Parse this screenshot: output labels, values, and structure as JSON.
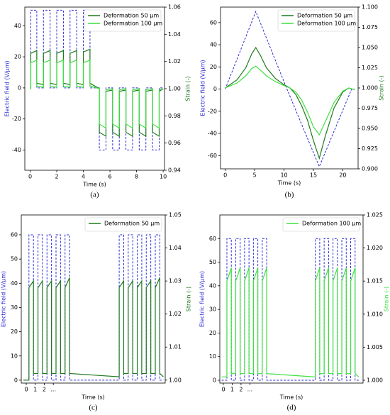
{
  "chart_data": [
    {
      "type": "line",
      "caption": "(a)",
      "xlabel": "Time (s)",
      "ylabel": "Electric field (V/µm)",
      "y2label": "Strain (-)",
      "legend": "upper right",
      "xlim": [
        -0.4,
        10.1
      ],
      "ylim": [
        -53,
        52
      ],
      "y2lim": [
        0.94,
        1.06
      ],
      "xticks": [
        0,
        2,
        4,
        6,
        8,
        10
      ],
      "yticks": [
        -40,
        -20,
        0,
        20,
        40
      ],
      "y2ticks": [
        0.94,
        0.96,
        0.98,
        {
          "value": 1,
          "label": "1.00"
        },
        1.02,
        1.04,
        1.06
      ],
      "series": [
        {
          "color": "#2b2bd6",
          "linestyle": "dashed",
          "x": [
            0,
            0.05,
            0.05,
            0.5,
            0.5,
            1,
            1,
            1.5,
            1.5,
            2,
            2,
            2.5,
            2.5,
            3,
            3,
            3.5,
            3.5,
            4,
            4,
            4.5,
            4.5,
            5.2,
            5.2,
            5.7,
            5.7,
            6.2,
            6.2,
            6.7,
            6.7,
            7.2,
            7.2,
            7.7,
            7.7,
            8.2,
            8.2,
            8.7,
            8.7,
            9.2,
            9.2,
            9.7,
            9.7,
            10
          ],
          "values": [
            0,
            0,
            50,
            50,
            0,
            0,
            50,
            50,
            0,
            0,
            50,
            50,
            0,
            0,
            50,
            50,
            0,
            0,
            50,
            50,
            0,
            0,
            -40,
            -40,
            0,
            0,
            -40,
            -40,
            0,
            0,
            -40,
            -40,
            0,
            0,
            -40,
            -40,
            0,
            0,
            -40,
            -40,
            0,
            0
          ]
        },
        {
          "name": "Deformation 50 µm",
          "color": "#1f7a1f",
          "axis": "y2",
          "x": [
            0,
            0.05,
            0.05,
            0.5,
            0.5,
            1,
            1,
            1.5,
            1.5,
            2,
            2,
            2.5,
            2.5,
            3,
            3,
            3.5,
            3.5,
            4,
            4,
            4.5,
            4.5,
            5.2,
            5.2,
            5.7,
            5.7,
            6.2,
            6.2,
            6.7,
            6.7,
            7.2,
            7.2,
            7.7,
            7.7,
            8.2,
            8.2,
            8.7,
            8.7,
            9.2,
            9.2,
            9.7,
            9.7,
            10
          ],
          "values": [
            1,
            1,
            1.026,
            1.028,
            1.004,
            1.003,
            1.026,
            1.028,
            1.004,
            1.003,
            1.026,
            1.028,
            1.004,
            1.003,
            1.026,
            1.028,
            1.004,
            1.003,
            1.027,
            1.029,
            1.004,
            1,
            0.968,
            0.965,
            0.998,
            0.999,
            0.968,
            0.965,
            0.998,
            0.999,
            0.968,
            0.965,
            0.998,
            0.999,
            0.968,
            0.965,
            0.998,
            0.999,
            0.968,
            0.965,
            0.998,
            1
          ]
        },
        {
          "name": "Deformation 100 µm",
          "color": "#3de03d",
          "axis": "y2",
          "x": [
            0,
            0.05,
            0.05,
            0.5,
            0.5,
            1,
            1,
            1.5,
            1.5,
            2,
            2,
            2.5,
            2.5,
            3,
            3,
            3.5,
            3.5,
            4,
            4,
            4.5,
            4.5,
            5.2,
            5.2,
            5.7,
            5.7,
            6.2,
            6.2,
            6.7,
            6.7,
            7.2,
            7.2,
            7.7,
            7.7,
            8.2,
            8.2,
            8.7,
            8.7,
            9.2,
            9.2,
            9.7,
            9.7,
            10
          ],
          "values": [
            1,
            1,
            1.019,
            1.021,
            1.002,
            1.001,
            1.019,
            1.021,
            1.002,
            1.001,
            1.019,
            1.021,
            1.002,
            1.001,
            1.019,
            1.021,
            1.002,
            1.001,
            1.019,
            1.021,
            1.002,
            1,
            0.974,
            0.971,
            0.999,
            1,
            0.974,
            0.971,
            0.999,
            1,
            0.974,
            0.971,
            0.999,
            1,
            0.974,
            0.971,
            0.999,
            1,
            0.974,
            0.971,
            0.999,
            1
          ]
        }
      ]
    },
    {
      "type": "line",
      "caption": "(b)",
      "xlabel": "Time (s)",
      "ylabel": "Electric field (V/µm)",
      "y2label": "Strain (-)",
      "legend": "upper right",
      "xlim": [
        -0.8,
        22.6
      ],
      "ylim": [
        -72,
        74
      ],
      "y2lim": [
        0.9,
        1.1
      ],
      "xticks": [
        0,
        5,
        10,
        15,
        20
      ],
      "yticks": [
        -60,
        -40,
        -20,
        0,
        20,
        40,
        60
      ],
      "y2ticks": [
        {
          "value": 0.9,
          "label": "0.900"
        },
        0.925,
        {
          "value": 0.95,
          "label": "0.950"
        },
        0.975,
        {
          "value": 1,
          "label": "1.000"
        },
        1.025,
        {
          "value": 1.05,
          "label": "1.050"
        },
        1.075,
        {
          "value": 1.1,
          "label": "1.100"
        }
      ],
      "series": [
        {
          "color": "#2b2bd6",
          "linestyle": "dashed",
          "x": [
            0,
            5.2,
            10.5,
            16,
            21.5,
            22
          ],
          "values": [
            0,
            70,
            0,
            -70,
            0,
            0
          ]
        },
        {
          "name": "Deformation 50 µm",
          "color": "#1f7a1f",
          "axis": "y2",
          "x": [
            0,
            2,
            3.5,
            4.5,
            5.2,
            6,
            7,
            8.5,
            10,
            11,
            12,
            13,
            14,
            15,
            16,
            17,
            18.5,
            20,
            21,
            22
          ],
          "values": [
            1,
            1.01,
            1.025,
            1.042,
            1.05,
            1.04,
            1.025,
            1.012,
            1.004,
            1,
            0.992,
            0.978,
            0.96,
            0.935,
            0.913,
            0.94,
            0.975,
            0.995,
            1,
            0.998
          ]
        },
        {
          "name": "Deformation 100 µm",
          "color": "#3de03d",
          "axis": "y2",
          "x": [
            0,
            2,
            3.5,
            4.5,
            5.2,
            6,
            7,
            8.5,
            10,
            11,
            12,
            13,
            14,
            15,
            16,
            17,
            18.5,
            20,
            21,
            22
          ],
          "values": [
            1,
            1.006,
            1.015,
            1.024,
            1.027,
            1.022,
            1.015,
            1.008,
            1.003,
            1,
            0.995,
            0.985,
            0.97,
            0.952,
            0.942,
            0.958,
            0.982,
            0.996,
            1,
            0.998
          ]
        }
      ]
    },
    {
      "type": "line",
      "caption": "(c)",
      "xlabel": "Time (s)",
      "ylabel": "Electric field (V/µm)",
      "y2label": "Strain (-)",
      "legend": "upper right",
      "xlim": [
        -0.55,
        15.4
      ],
      "ylim": [
        -1.2,
        68.2
      ],
      "y2lim": [
        0.9991,
        1.05
      ],
      "xticks": [
        0,
        1,
        2,
        {
          "value": 3,
          "label": "..."
        }
      ],
      "yticks": [
        0,
        10,
        20,
        30,
        40,
        50,
        60
      ],
      "y2ticks": [
        {
          "value": 1,
          "label": "1.00"
        },
        1.01,
        1.02,
        1.03,
        1.04,
        1.05
      ],
      "series": [
        {
          "color": "#2b2bd6",
          "linestyle": "dashed",
          "x": [
            -0.3,
            0.3,
            0.3,
            0.8,
            0.8,
            1.3,
            1.3,
            1.8,
            1.8,
            2.3,
            2.3,
            2.8,
            2.8,
            3.3,
            3.3,
            3.8,
            3.8,
            4.3,
            4.3,
            4.8,
            4.8,
            10.3,
            10.3,
            10.8,
            10.8,
            11.3,
            11.3,
            11.8,
            11.8,
            12.3,
            12.3,
            12.8,
            12.8,
            13.3,
            13.3,
            13.8,
            13.8,
            14.3,
            14.3,
            14.8,
            14.8,
            15.2
          ],
          "values": [
            0,
            0,
            60,
            60,
            0,
            0,
            60,
            60,
            0,
            0,
            60,
            60,
            0,
            0,
            60,
            60,
            0,
            0,
            60,
            60,
            0,
            0,
            60,
            60,
            0,
            0,
            60,
            60,
            0,
            0,
            60,
            60,
            0,
            0,
            60,
            60,
            0,
            0,
            60,
            60,
            0,
            0
          ]
        },
        {
          "name": "Deformation 50 µm",
          "color": "#1f7a1f",
          "axis": "y2",
          "x": [
            -0.3,
            0.3,
            0.3,
            0.8,
            0.8,
            1.3,
            1.3,
            1.8,
            1.8,
            2.3,
            2.3,
            2.8,
            2.8,
            3.3,
            3.3,
            3.8,
            3.8,
            4.3,
            4.3,
            4.8,
            4.8,
            10.3,
            10.3,
            10.8,
            10.8,
            11.3,
            11.3,
            11.8,
            11.8,
            12.3,
            12.3,
            12.8,
            12.8,
            13.3,
            13.3,
            13.8,
            13.8,
            14.3,
            14.3,
            14.8,
            14.8,
            15.2
          ],
          "values": [
            1,
            1,
            1.028,
            1.03,
            1.002,
            1.002,
            1.028,
            1.03,
            1.002,
            1.002,
            1.028,
            1.03,
            1.002,
            1.002,
            1.028,
            1.03,
            1.002,
            1.002,
            1.028,
            1.031,
            1.002,
            1.001,
            1.028,
            1.03,
            1.002,
            1.002,
            1.028,
            1.03,
            1.002,
            1.002,
            1.028,
            1.03,
            1.002,
            1.002,
            1.028,
            1.03,
            1.002,
            1.002,
            1.028,
            1.031,
            1.002,
            1.001
          ]
        }
      ]
    },
    {
      "type": "line",
      "caption": "(d)",
      "xlabel": "Time (s)",
      "ylabel": "Electric field (V/µm)",
      "y2label": "Strain (-)",
      "legend": "upper right",
      "xlim": [
        -0.4,
        15.8
      ],
      "ylim": [
        -1.2,
        70
      ],
      "y2lim": [
        0.99957,
        1.025
      ],
      "xticks": [
        0,
        1,
        2,
        {
          "value": 3,
          "label": "..."
        }
      ],
      "yticks": [
        0,
        10,
        20,
        30,
        40,
        50,
        60
      ],
      "y2ticks": [
        {
          "value": 1,
          "label": "1.000"
        },
        1.005,
        {
          "value": 1.01,
          "label": "1.010"
        },
        1.015,
        {
          "value": 1.02,
          "label": "1.020"
        },
        1.025
      ],
      "series": [
        {
          "color": "#2b2bd6",
          "linestyle": "dashed",
          "x": [
            -0.2,
            0.4,
            0.4,
            0.9,
            0.9,
            1.4,
            1.4,
            1.9,
            1.9,
            2.4,
            2.4,
            2.9,
            2.9,
            3.4,
            3.4,
            3.9,
            3.9,
            4.4,
            4.4,
            4.9,
            4.9,
            10.4,
            10.4,
            10.9,
            10.9,
            11.4,
            11.4,
            11.9,
            11.9,
            12.4,
            12.4,
            12.9,
            12.9,
            13.4,
            13.4,
            13.9,
            13.9,
            14.4,
            14.4,
            14.9,
            14.9,
            15.3
          ],
          "values": [
            0,
            0,
            60,
            60,
            0,
            0,
            60,
            60,
            0,
            0,
            60,
            60,
            0,
            0,
            60,
            60,
            0,
            0,
            60,
            60,
            0,
            0,
            60,
            60,
            0,
            0,
            60,
            60,
            0,
            0,
            60,
            60,
            0,
            0,
            60,
            60,
            0,
            0,
            60,
            60,
            0,
            0
          ]
        },
        {
          "name": "Deformation 100 µm",
          "color": "#3de03d",
          "axis": "y2",
          "x": [
            -0.2,
            0.4,
            0.4,
            0.9,
            0.9,
            1.4,
            1.4,
            1.9,
            1.9,
            2.4,
            2.4,
            2.9,
            2.9,
            3.4,
            3.4,
            3.9,
            3.9,
            4.4,
            4.4,
            4.9,
            4.9,
            10.4,
            10.4,
            10.9,
            10.9,
            11.4,
            11.4,
            11.9,
            11.9,
            12.4,
            12.4,
            12.9,
            12.9,
            13.4,
            13.4,
            13.9,
            13.9,
            14.4,
            14.4,
            14.9,
            14.9,
            15.3
          ],
          "values": [
            1.0005,
            1.0005,
            1.015,
            1.017,
            1.001,
            1.001,
            1.015,
            1.017,
            1.001,
            1.001,
            1.015,
            1.017,
            1.001,
            1.001,
            1.015,
            1.017,
            1.001,
            1.001,
            1.015,
            1.017,
            1.001,
            1.0005,
            1.015,
            1.017,
            1.001,
            1.001,
            1.015,
            1.017,
            1.001,
            1.001,
            1.015,
            1.017,
            1.001,
            1.001,
            1.015,
            1.017,
            1.001,
            1.001,
            1.015,
            1.017,
            1.001,
            1.0005
          ]
        }
      ]
    }
  ]
}
